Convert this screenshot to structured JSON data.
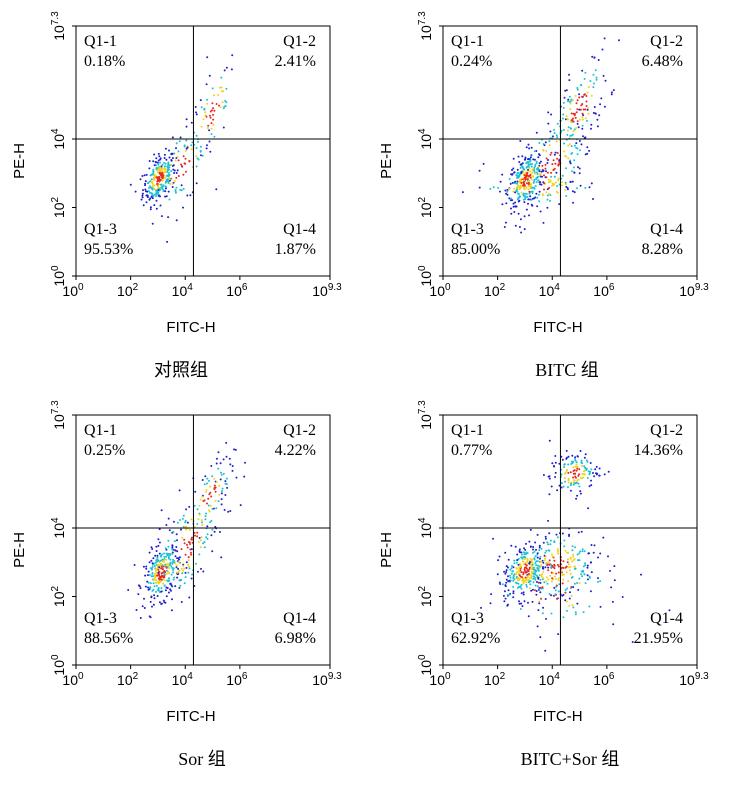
{
  "colors": {
    "frame": "#000000",
    "dot_low": "#1f1fcc",
    "dot_mid": "#19c2d6",
    "dot_high": "#f0d21c",
    "dot_peak": "#e8281e"
  },
  "chart_data": [
    {
      "type": "scatter",
      "title": "对照组",
      "xlabel": "FITC-H",
      "ylabel": "PE-H",
      "xlim": [
        0,
        9.3
      ],
      "ylim": [
        0,
        7.3
      ],
      "x_ticks": [
        {
          "base": "10",
          "exp": "0"
        },
        {
          "base": "10",
          "exp": "2"
        },
        {
          "base": "10",
          "exp": "4"
        },
        {
          "base": "10",
          "exp": "6"
        },
        {
          "base": "10",
          "exp": "9.3"
        }
      ],
      "y_ticks": [
        {
          "base": "10",
          "exp": "0"
        },
        {
          "base": "10",
          "exp": "2"
        },
        {
          "base": "10",
          "exp": "4"
        },
        {
          "base": "10",
          "exp": "7.3"
        }
      ],
      "quadrants": [
        {
          "name": "Q1-1",
          "value": "0.18%"
        },
        {
          "name": "Q1-2",
          "value": "2.41%"
        },
        {
          "name": "Q1-3",
          "value": "95.53%"
        },
        {
          "name": "Q1-4",
          "value": "1.87%"
        }
      ]
    },
    {
      "type": "scatter",
      "title": "BITC 组",
      "xlabel": "FITC-H",
      "ylabel": "PE-H",
      "xlim": [
        0,
        9.3
      ],
      "ylim": [
        0,
        7.3
      ],
      "x_ticks": [
        {
          "base": "10",
          "exp": "0"
        },
        {
          "base": "10",
          "exp": "2"
        },
        {
          "base": "10",
          "exp": "4"
        },
        {
          "base": "10",
          "exp": "6"
        },
        {
          "base": "10",
          "exp": "9.3"
        }
      ],
      "y_ticks": [
        {
          "base": "10",
          "exp": "0"
        },
        {
          "base": "10",
          "exp": "2"
        },
        {
          "base": "10",
          "exp": "4"
        },
        {
          "base": "10",
          "exp": "7.3"
        }
      ],
      "quadrants": [
        {
          "name": "Q1-1",
          "value": "0.24%"
        },
        {
          "name": "Q1-2",
          "value": "6.48%"
        },
        {
          "name": "Q1-3",
          "value": "85.00%"
        },
        {
          "name": "Q1-4",
          "value": "8.28%"
        }
      ]
    },
    {
      "type": "scatter",
      "title": "Sor 组",
      "xlabel": "FITC-H",
      "ylabel": "PE-H",
      "xlim": [
        0,
        9.3
      ],
      "ylim": [
        0,
        7.3
      ],
      "x_ticks": [
        {
          "base": "10",
          "exp": "0"
        },
        {
          "base": "10",
          "exp": "2"
        },
        {
          "base": "10",
          "exp": "4"
        },
        {
          "base": "10",
          "exp": "6"
        },
        {
          "base": "10",
          "exp": "9.3"
        }
      ],
      "y_ticks": [
        {
          "base": "10",
          "exp": "0"
        },
        {
          "base": "10",
          "exp": "2"
        },
        {
          "base": "10",
          "exp": "4"
        },
        {
          "base": "10",
          "exp": "7.3"
        }
      ],
      "quadrants": [
        {
          "name": "Q1-1",
          "value": "0.25%"
        },
        {
          "name": "Q1-2",
          "value": "4.22%"
        },
        {
          "name": "Q1-3",
          "value": "88.56%"
        },
        {
          "name": "Q1-4",
          "value": "6.98%"
        }
      ]
    },
    {
      "type": "scatter",
      "title": "BITC+Sor 组",
      "xlabel": "FITC-H",
      "ylabel": "PE-H",
      "xlim": [
        0,
        9.3
      ],
      "ylim": [
        0,
        7.3
      ],
      "x_ticks": [
        {
          "base": "10",
          "exp": "0"
        },
        {
          "base": "10",
          "exp": "2"
        },
        {
          "base": "10",
          "exp": "4"
        },
        {
          "base": "10",
          "exp": "6"
        },
        {
          "base": "10",
          "exp": "9.3"
        }
      ],
      "y_ticks": [
        {
          "base": "10",
          "exp": "0"
        },
        {
          "base": "10",
          "exp": "2"
        },
        {
          "base": "10",
          "exp": "4"
        },
        {
          "base": "10",
          "exp": "7.3"
        }
      ],
      "quadrants": [
        {
          "name": "Q1-1",
          "value": "0.77%"
        },
        {
          "name": "Q1-2",
          "value": "14.36%"
        },
        {
          "name": "Q1-3",
          "value": "62.92%"
        },
        {
          "name": "Q1-4",
          "value": "21.95%"
        }
      ]
    }
  ]
}
